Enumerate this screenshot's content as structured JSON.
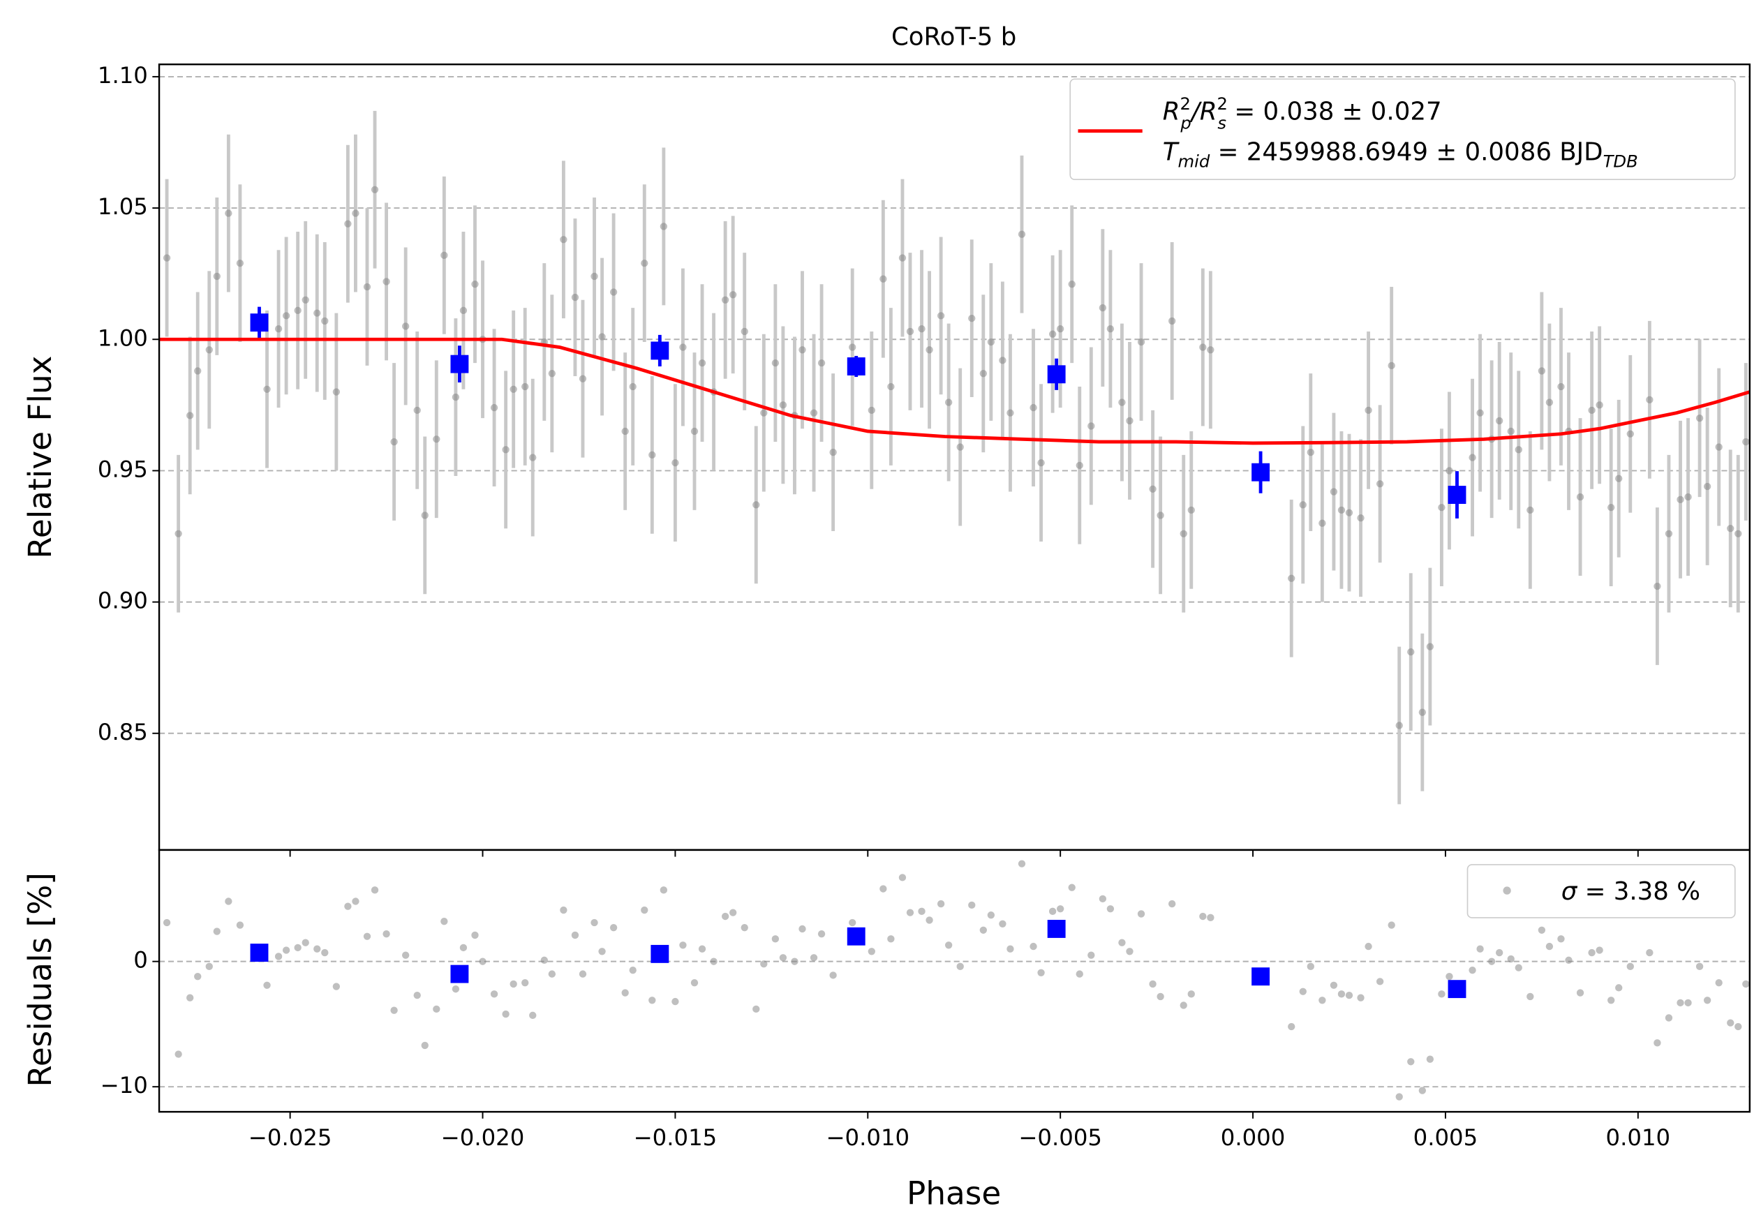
{
  "chart_data": [
    {
      "type": "errorbar",
      "title": "CoRoT-5 b",
      "ylabel": "Relative Flux",
      "xlim": [
        -0.0284,
        0.0129
      ],
      "ylim": [
        0.8056,
        1.1047
      ],
      "yticks": [
        {
          "value": 1.1,
          "label": "1.10"
        },
        {
          "value": 1.05,
          "label": "1.05"
        },
        {
          "value": 1.0,
          "label": "1.00"
        },
        {
          "value": 0.95,
          "label": "0.95"
        },
        {
          "value": 0.9,
          "label": "0.90"
        },
        {
          "value": 0.85,
          "label": "0.85"
        }
      ],
      "grid": true,
      "legend": "upper right",
      "series": [
        {
          "marker": "o",
          "color": "#808080",
          "errcolor": "#c8c8c8",
          "yerr": 0.03,
          "x": [
            -0.0282,
            -0.0279,
            -0.0276,
            -0.0274,
            -0.0271,
            -0.0269,
            -0.0266,
            -0.0263,
            -0.0256,
            -0.0253,
            -0.0251,
            -0.0248,
            -0.0246,
            -0.0243,
            -0.0241,
            -0.0238,
            -0.0235,
            -0.0233,
            -0.023,
            -0.0228,
            -0.0225,
            -0.0223,
            -0.022,
            -0.0217,
            -0.0215,
            -0.0212,
            -0.021,
            -0.0207,
            -0.0205,
            -0.0202,
            -0.02,
            -0.0197,
            -0.0194,
            -0.0192,
            -0.0189,
            -0.0187,
            -0.0184,
            -0.0182,
            -0.0179,
            -0.0176,
            -0.0174,
            -0.0171,
            -0.0169,
            -0.0166,
            -0.0163,
            -0.0161,
            -0.0158,
            -0.0156,
            -0.0153,
            -0.015,
            -0.0148,
            -0.0145,
            -0.0143,
            -0.014,
            -0.0137,
            -0.0135,
            -0.0132,
            -0.0129,
            -0.0127,
            -0.0124,
            -0.0122,
            -0.0119,
            -0.0117,
            -0.0114,
            -0.0112,
            -0.0109,
            -0.0104,
            -0.0099,
            -0.0096,
            -0.0094,
            -0.0091,
            -0.0089,
            -0.0086,
            -0.0084,
            -0.0081,
            -0.0079,
            -0.0076,
            -0.0073,
            -0.007,
            -0.0068,
            -0.0065,
            -0.0063,
            -0.006,
            -0.0057,
            -0.0055,
            -0.0052,
            -0.005,
            -0.0047,
            -0.0045,
            -0.0042,
            -0.0039,
            -0.0037,
            -0.0034,
            -0.0032,
            -0.0029,
            -0.0026,
            -0.0024,
            -0.0021,
            -0.0018,
            -0.0016,
            -0.0013,
            -0.0011,
            0.001,
            0.0013,
            0.0015,
            0.0018,
            0.0021,
            0.0023,
            0.0025,
            0.0028,
            0.003,
            0.0033,
            0.0036,
            0.0038,
            0.0041,
            0.0044,
            0.0046,
            0.0049,
            0.0051,
            0.0057,
            0.0059,
            0.0062,
            0.0064,
            0.0067,
            0.0069,
            0.0072,
            0.0075,
            0.0077,
            0.008,
            0.0082,
            0.0085,
            0.0088,
            0.009,
            0.0093,
            0.0095,
            0.0098,
            0.0103,
            0.0105,
            0.0108,
            0.0111,
            0.0113,
            0.0116,
            0.0118,
            0.0121,
            0.0124,
            0.0126,
            0.0128
          ],
          "values": [
            1.031,
            0.926,
            0.971,
            0.988,
            0.996,
            1.024,
            1.048,
            1.029,
            0.981,
            1.004,
            1.009,
            1.011,
            1.015,
            1.01,
            1.007,
            0.98,
            1.044,
            1.048,
            1.02,
            1.057,
            1.022,
            0.961,
            1.005,
            0.973,
            0.933,
            0.962,
            1.032,
            0.978,
            1.011,
            1.021,
            1.0,
            0.974,
            0.958,
            0.981,
            0.982,
            0.955,
            0.999,
            0.987,
            1.038,
            1.016,
            0.985,
            1.024,
            1.001,
            1.018,
            0.965,
            0.982,
            1.029,
            0.956,
            1.043,
            0.953,
            0.997,
            0.965,
            0.991,
            0.98,
            1.015,
            1.017,
            1.003,
            0.937,
            0.972,
            0.991,
            0.975,
            0.971,
            0.996,
            0.972,
            0.991,
            0.957,
            0.997,
            0.973,
            1.023,
            0.982,
            1.031,
            1.003,
            1.004,
            0.996,
            1.009,
            0.976,
            0.959,
            1.008,
            0.987,
            0.999,
            0.992,
            0.972,
            1.04,
            0.974,
            0.953,
            1.002,
            1.004,
            1.021,
            0.952,
            0.967,
            1.012,
            1.004,
            0.976,
            0.969,
            0.999,
            0.943,
            0.933,
            1.007,
            0.926,
            0.935,
            0.997,
            0.996,
            0.909,
            0.937,
            0.957,
            0.93,
            0.942,
            0.935,
            0.934,
            0.932,
            0.973,
            0.945,
            0.99,
            0.853,
            0.881,
            0.858,
            0.883,
            0.936,
            0.95,
            0.955,
            0.972,
            0.962,
            0.969,
            0.965,
            0.958,
            0.935,
            0.988,
            0.976,
            0.982,
            0.965,
            0.94,
            0.973,
            0.975,
            0.936,
            0.947,
            0.964,
            0.977,
            0.906,
            0.926,
            0.939,
            0.94,
            0.97,
            0.944,
            0.959,
            0.928,
            0.926,
            0.961
          ]
        },
        {
          "marker": "s",
          "color": "#0000ff",
          "errcolor": "#0000ff",
          "x": [
            -0.0258,
            -0.0206,
            -0.0154,
            -0.0103,
            -0.0051,
            0.0002,
            0.0053
          ],
          "values": [
            1.0064,
            0.9906,
            0.9957,
            0.9897,
            0.9867,
            0.9494,
            0.9408
          ],
          "yerr": [
            0.006,
            0.007,
            0.006,
            0.004,
            0.006,
            0.008,
            0.009
          ]
        },
        {
          "name": [
            "R",
            "2",
            "p",
            "/R",
            "2",
            "s",
            " = 0.038 ± 0.027"
          ],
          "name2": [
            "T",
            "mid",
            " = 2459988.6949 ± 0.0086 BJD",
            "TDB"
          ],
          "color": "#ff0000",
          "x": [
            -0.0284,
            -0.0195,
            -0.018,
            -0.016,
            -0.014,
            -0.012,
            -0.01,
            -0.008,
            -0.006,
            -0.004,
            -0.002,
            0,
            0.002,
            0.004,
            0.006,
            0.008,
            0.009,
            0.01,
            0.011,
            0.012,
            0.0129
          ],
          "values": [
            1.0,
            1.0,
            0.997,
            0.989,
            0.98,
            0.971,
            0.965,
            0.963,
            0.962,
            0.961,
            0.961,
            0.9605,
            0.9607,
            0.961,
            0.962,
            0.964,
            0.966,
            0.969,
            0.972,
            0.976,
            0.98
          ]
        }
      ]
    },
    {
      "type": "errorbar",
      "xlabel": "Phase",
      "ylabel": "Residuals [%]",
      "xlim": [
        -0.0284,
        0.0129
      ],
      "ylim": [
        -12.0,
        8.9
      ],
      "xticks": [
        {
          "value": -0.025,
          "label": "−0.025"
        },
        {
          "value": -0.02,
          "label": "−0.020"
        },
        {
          "value": -0.015,
          "label": "−0.015"
        },
        {
          "value": -0.01,
          "label": "−0.010"
        },
        {
          "value": -0.005,
          "label": "−0.005"
        },
        {
          "value": 0.0,
          "label": "0.000"
        },
        {
          "value": 0.005,
          "label": "0.005"
        },
        {
          "value": 0.01,
          "label": "0.010"
        }
      ],
      "yticks": [
        0,
        {
          "value": -10,
          "label": "−10"
        }
      ],
      "grid": true,
      "legend": "upper right",
      "series": [
        {
          "name": [
            "σ",
            " = 3.38 %"
          ],
          "marker": "o",
          "color": "#808080",
          "values": [
            3.1,
            -7.4,
            -2.9,
            -1.2,
            -0.4,
            2.4,
            4.8,
            2.9,
            -1.9,
            0.4,
            0.9,
            1.1,
            1.5,
            1.0,
            0.7,
            -2.0,
            4.4,
            4.8,
            2.0,
            5.7,
            2.2,
            -3.9,
            0.5,
            -2.7,
            -6.7,
            -3.8,
            3.2,
            -2.2,
            1.1,
            2.1,
            0.0,
            -2.6,
            -4.2,
            -1.8,
            -1.7,
            -4.3,
            0.1,
            -1.0,
            4.1,
            2.1,
            -1.0,
            3.1,
            0.8,
            2.7,
            -2.5,
            -0.7,
            4.1,
            -3.1,
            5.7,
            -3.2,
            1.3,
            -1.7,
            1.0,
            0.0,
            3.6,
            3.9,
            2.7,
            -3.8,
            -0.2,
            1.8,
            0.3,
            0.0,
            2.6,
            0.3,
            2.2,
            -1.1,
            3.1,
            0.8,
            5.8,
            1.8,
            6.7,
            3.9,
            4.0,
            3.3,
            4.6,
            1.3,
            -0.4,
            4.5,
            2.5,
            3.7,
            3.0,
            1.0,
            7.8,
            1.2,
            -0.9,
            4.0,
            4.2,
            5.9,
            -1.0,
            0.5,
            5.0,
            4.2,
            1.5,
            0.8,
            3.8,
            -1.8,
            -2.8,
            4.6,
            -3.5,
            -2.6,
            3.6,
            3.5,
            -5.2,
            -2.4,
            -0.4,
            -3.1,
            -1.9,
            -2.6,
            -2.7,
            -2.9,
            1.2,
            -1.6,
            2.9,
            -10.8,
            -8.0,
            -10.3,
            -7.8,
            -2.6,
            -1.2,
            -0.7,
            1.0,
            0.0,
            0.7,
            0.2,
            -0.5,
            -2.8,
            2.5,
            1.2,
            1.8,
            0.1,
            -2.5,
            0.7,
            0.9,
            -3.1,
            -2.1,
            -0.4,
            0.7,
            -6.5,
            -4.5,
            -3.3,
            -3.3,
            -0.4,
            -3.1,
            -1.7,
            -4.9,
            -5.2,
            -1.8
          ]
        },
        {
          "marker": "s",
          "color": "#0000ff",
          "values": [
            0.7,
            -1.0,
            0.6,
            2.0,
            2.6,
            -1.2,
            -2.2
          ]
        }
      ]
    }
  ]
}
